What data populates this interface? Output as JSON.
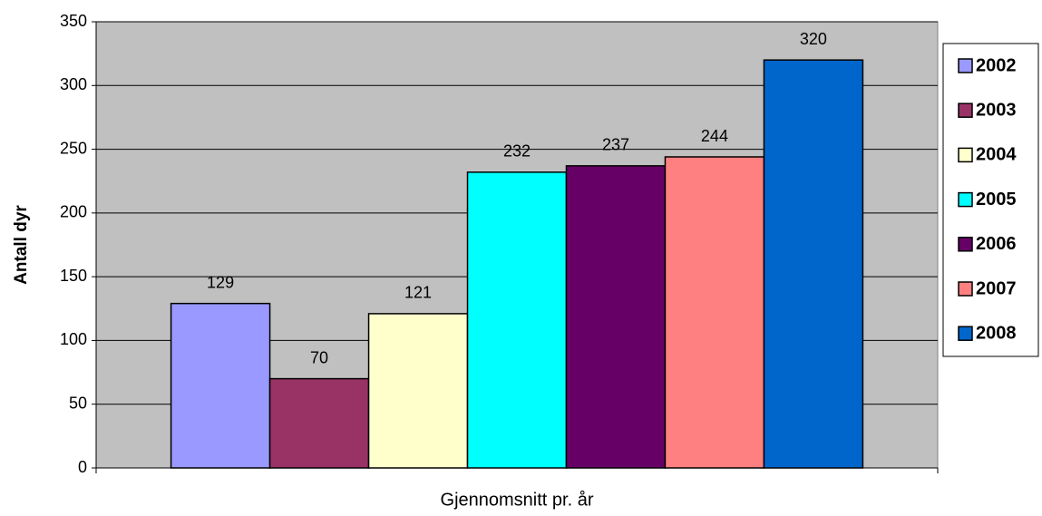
{
  "chart_data": {
    "type": "bar",
    "y_label": "Antall dyr",
    "categories": [
      "Gjennomsnitt pr. år"
    ],
    "series": [
      {
        "name": "2002",
        "color": "#9999FF",
        "values": [
          129
        ]
      },
      {
        "name": "2003",
        "color": "#993366",
        "values": [
          70
        ]
      },
      {
        "name": "2004",
        "color": "#FFFFCC",
        "values": [
          121
        ]
      },
      {
        "name": "2005",
        "color": "#00FFFF",
        "values": [
          232
        ]
      },
      {
        "name": "2006",
        "color": "#660066",
        "values": [
          237
        ]
      },
      {
        "name": "2007",
        "color": "#FF8080",
        "values": [
          244
        ]
      },
      {
        "name": "2008",
        "color": "#0066CC",
        "values": [
          320
        ]
      }
    ],
    "ylim": [
      0,
      350
    ],
    "yticks": [
      0,
      50,
      100,
      150,
      200,
      250,
      300,
      350
    ],
    "grid": true,
    "legend": "right"
  }
}
